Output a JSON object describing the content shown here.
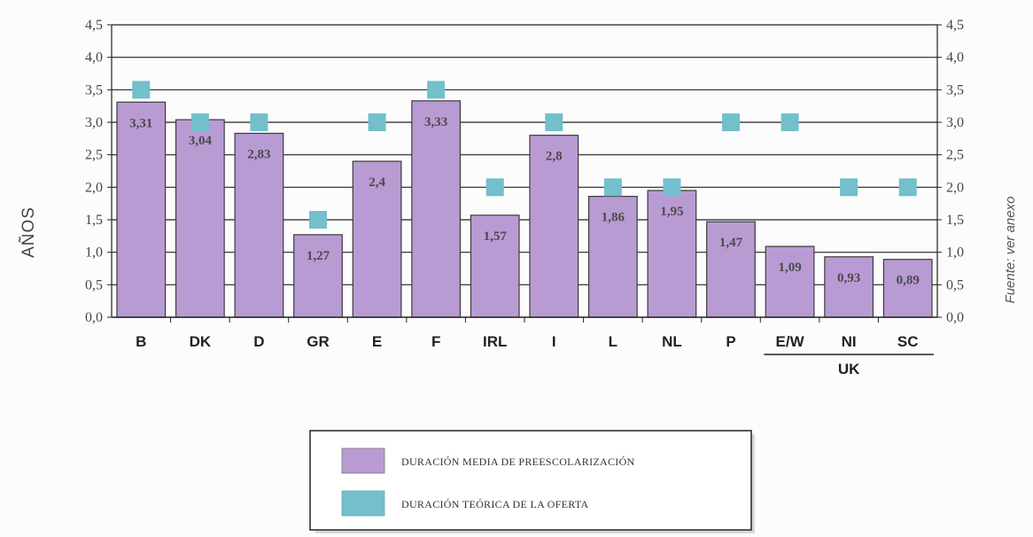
{
  "chart_data": {
    "type": "bar",
    "categories": [
      "B",
      "DK",
      "D",
      "GR",
      "E",
      "F",
      "IRL",
      "I",
      "L",
      "NL",
      "P",
      "E/W",
      "NI",
      "SC"
    ],
    "group_label": {
      "text": "UK",
      "categories": [
        "E/W",
        "NI",
        "SC"
      ]
    },
    "series": [
      {
        "name": "DURACIÓN MEDIA DE PREESCOLARIZACIÓN",
        "type": "bar",
        "color": "#b99bd4",
        "values": [
          3.31,
          3.04,
          2.83,
          1.27,
          2.4,
          3.33,
          1.57,
          2.8,
          1.86,
          1.95,
          1.47,
          1.09,
          0.93,
          0.89
        ],
        "labels": [
          "3,31",
          "3,04",
          "2,83",
          "1,27",
          "2,4",
          "3,33",
          "1,57",
          "2,8",
          "1,86",
          "1,95",
          "1,47",
          "1,09",
          "0,93",
          "0,89"
        ]
      },
      {
        "name": "DURACIÓN TEÓRICA DE LA OFERTA",
        "type": "marker",
        "color": "#73bfcb",
        "values": [
          3.5,
          3.0,
          3.0,
          1.5,
          3.0,
          3.5,
          2.0,
          3.0,
          2.0,
          2.0,
          3.0,
          3.0,
          2.0,
          2.0
        ]
      }
    ],
    "ylabel": "AÑOS",
    "ylim": [
      0,
      4.5
    ],
    "yticks": [
      "0,0",
      "0,5",
      "1,0",
      "1,5",
      "2,0",
      "2,5",
      "3,0",
      "3,5",
      "4,0",
      "4,5"
    ],
    "grid": true,
    "legend_position": "bottom"
  },
  "source_note": "Fuente: ver anexo"
}
